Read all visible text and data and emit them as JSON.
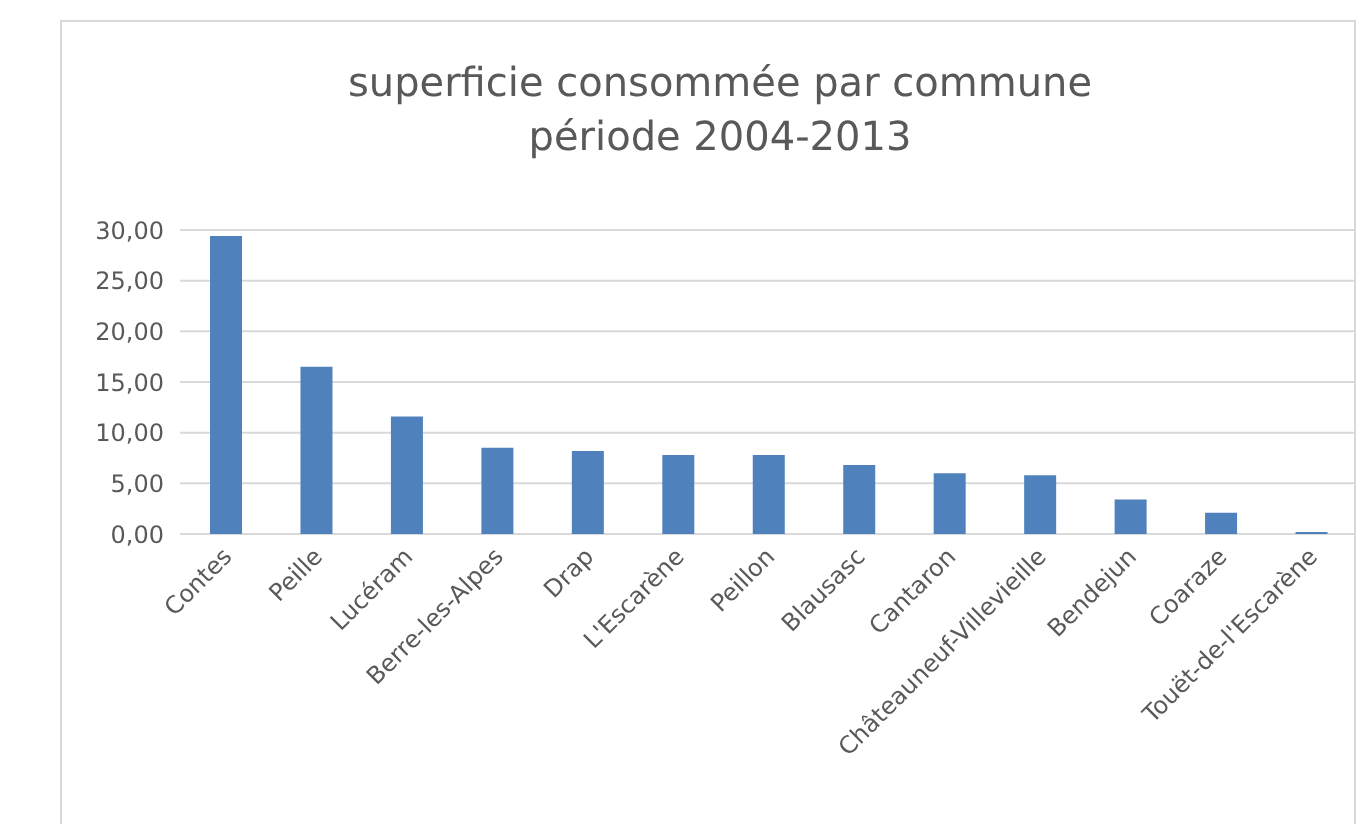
{
  "chart_data": {
    "type": "bar",
    "title": "superficie consommée par commune",
    "subtitle": "période 2004-2013",
    "categories": [
      "Contes",
      "Peille",
      "Lucéram",
      "Berre-les-Alpes",
      "Drap",
      "L'Escarène",
      "Peillon",
      "Blausasc",
      "Cantaron",
      "Châteauneuf-Villevieille",
      "Bendejun",
      "Coaraze",
      "Touët-de-l'Escarène"
    ],
    "values": [
      29.4,
      16.5,
      11.6,
      8.5,
      8.2,
      7.8,
      7.8,
      6.8,
      6.0,
      5.8,
      3.4,
      2.1,
      0.2
    ],
    "color": "#4f81bd",
    "ylim": [
      0,
      30
    ],
    "yticks": [
      {
        "value": 0,
        "label": "0,00"
      },
      {
        "value": 5,
        "label": "5,00"
      },
      {
        "value": 10,
        "label": "10,00"
      },
      {
        "value": 15,
        "label": "15,00"
      },
      {
        "value": 20,
        "label": "20,00"
      },
      {
        "value": 25,
        "label": "25,00"
      },
      {
        "value": 30,
        "label": "30,00"
      }
    ],
    "grid": "y",
    "legend": false
  }
}
